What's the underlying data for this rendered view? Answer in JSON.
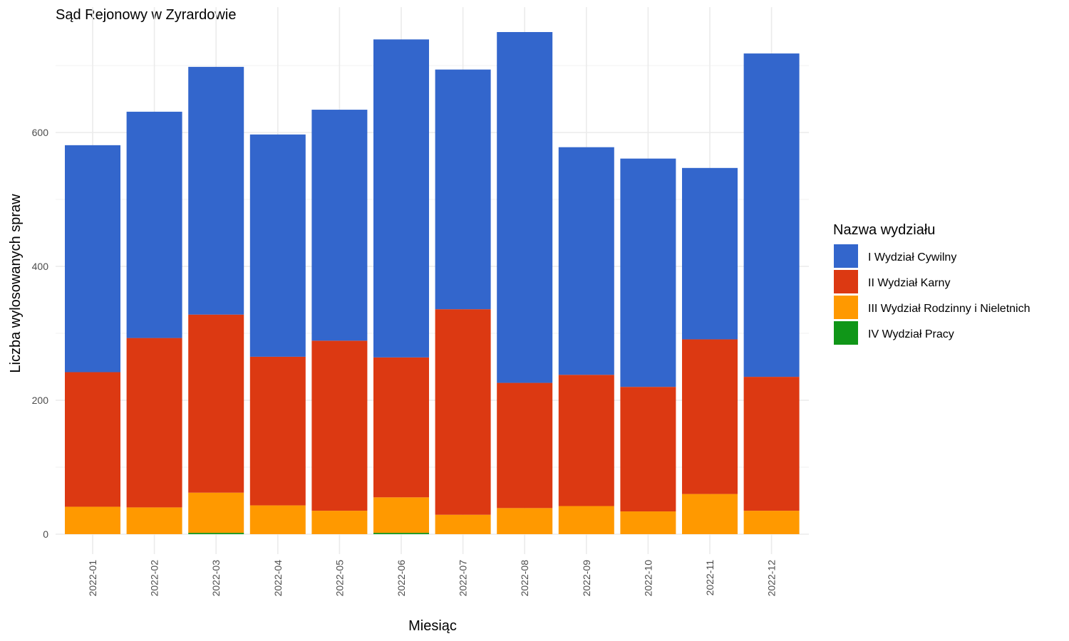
{
  "chart_data": {
    "type": "bar",
    "stacked": true,
    "title": "Sąd Rejonowy w Zyrardowie",
    "xlabel": "Miesiąc",
    "ylabel": "Liczba wylosowanych spraw",
    "ylim": [
      0,
      790
    ],
    "yticks": [
      0,
      200,
      400,
      600
    ],
    "grid": true,
    "legend_title": "Nazwa wydziału",
    "legend_position": "right",
    "categories": [
      "2022-01",
      "2022-02",
      "2022-03",
      "2022-04",
      "2022-05",
      "2022-06",
      "2022-07",
      "2022-08",
      "2022-09",
      "2022-10",
      "2022-11",
      "2022-12"
    ],
    "series": [
      {
        "name": "I Wydział Cywilny",
        "color": "#3366cc",
        "values": [
          339,
          338,
          370,
          332,
          345,
          475,
          358,
          524,
          340,
          341,
          256,
          483
        ]
      },
      {
        "name": "II Wydział Karny",
        "color": "#dc3912",
        "values": [
          201,
          253,
          266,
          222,
          254,
          209,
          307,
          187,
          196,
          186,
          231,
          200
        ]
      },
      {
        "name": "III Wydział Rodzinny i Nieletnich",
        "color": "#ff9900",
        "values": [
          41,
          40,
          60,
          43,
          35,
          53,
          29,
          39,
          42,
          34,
          60,
          35
        ]
      },
      {
        "name": "IV Wydział Pracy",
        "color": "#109618",
        "values": [
          0,
          0,
          2,
          0,
          0,
          2,
          0,
          0,
          0,
          0,
          0,
          0
        ]
      }
    ]
  }
}
